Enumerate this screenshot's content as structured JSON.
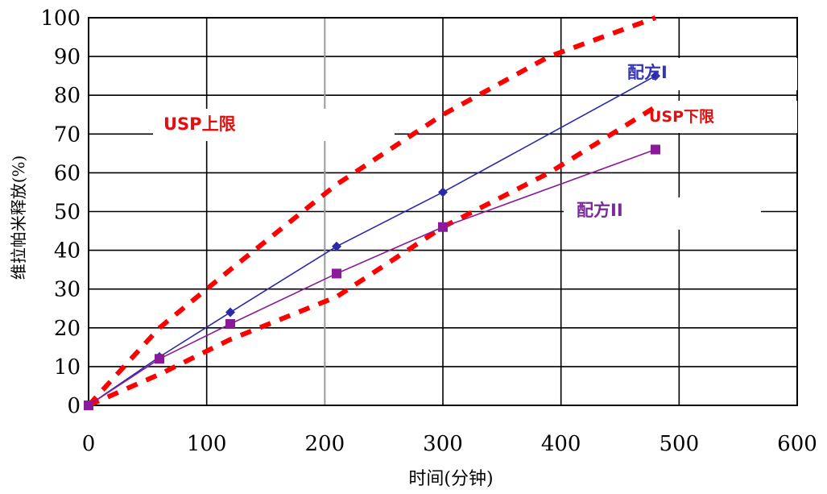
{
  "chart_data": {
    "type": "line",
    "xlabel": "时间(分钟)",
    "ylabel": "维拉帕米释放(%)",
    "xlim": [
      0,
      600
    ],
    "ylim": [
      0,
      100
    ],
    "x_ticks": [
      0,
      100,
      200,
      300,
      400,
      500,
      600
    ],
    "y_ticks": [
      0,
      10,
      20,
      30,
      40,
      50,
      60,
      70,
      80,
      90,
      100
    ],
    "grid": true,
    "colors": {
      "formula_1": "#2a2aa8",
      "formula_2": "#8a1a9a",
      "usp_limits": "#ff0000",
      "grid": "#000000",
      "grid_light": "#9a9a9a"
    },
    "series": [
      {
        "name": "USP上限",
        "style": "dashed",
        "x": [
          0,
          60,
          120,
          210,
          300,
          390,
          480
        ],
        "y": [
          0,
          20,
          35,
          57,
          75,
          90,
          100
        ]
      },
      {
        "name": "USP下限",
        "style": "dashed",
        "x": [
          0,
          60,
          120,
          210,
          300,
          390,
          480
        ],
        "y": [
          0,
          8,
          17,
          28,
          46,
          60,
          77
        ]
      },
      {
        "name": "配方I",
        "style": "solid",
        "marker": "diamond",
        "x": [
          0,
          60,
          120,
          210,
          300,
          480
        ],
        "y": [
          0,
          12.5,
          24,
          41,
          55,
          85
        ]
      },
      {
        "name": "配方II",
        "style": "solid",
        "marker": "square",
        "x": [
          0,
          60,
          120,
          210,
          300,
          480
        ],
        "y": [
          0,
          12,
          21,
          34,
          46,
          66
        ]
      }
    ],
    "annotations": {
      "usp_upper": "USP上限",
      "usp_lower": "USP下限",
      "formula_1": "配方I",
      "formula_2": "配方II"
    }
  }
}
